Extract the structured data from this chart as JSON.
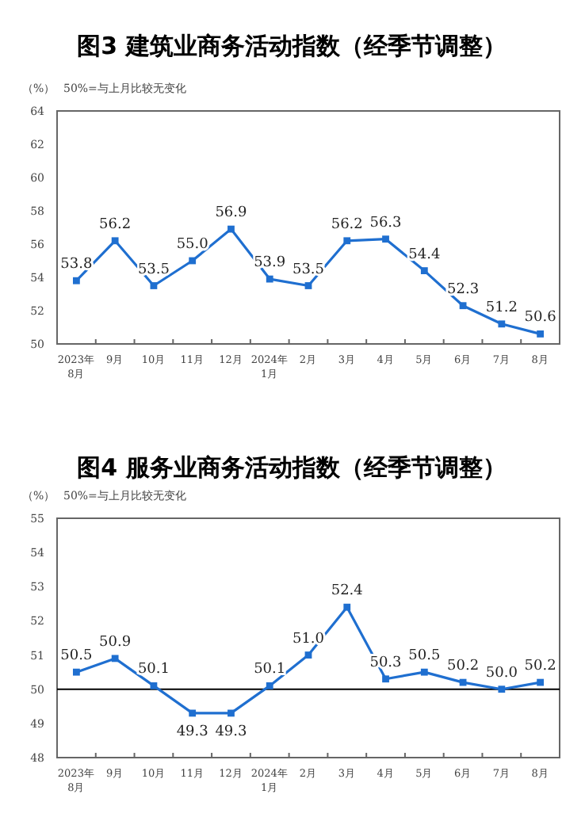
{
  "chart_data": [
    {
      "type": "line",
      "title": "图3  建筑业商务活动指数（经季节调整）",
      "ylabel": "（%）",
      "annotations": [
        "50%=与上月比较无变化"
      ],
      "categories": [
        "2023年\n8月",
        "9月",
        "10月",
        "11月",
        "12月",
        "2024年\n1月",
        "2月",
        "3月",
        "4月",
        "5月",
        "6月",
        "7月",
        "8月"
      ],
      "series": [
        {
          "color": "#1f6fd0",
          "values": [
            53.8,
            56.2,
            53.5,
            55.0,
            56.9,
            53.9,
            53.5,
            56.2,
            56.3,
            54.4,
            52.3,
            51.2,
            50.6
          ]
        }
      ],
      "value_labels": [
        "53.8",
        "56.2",
        "53.5",
        "55.0",
        "56.9",
        "53.9",
        "53.5",
        "56.2",
        "56.3",
        "54.4",
        "52.3",
        "51.2",
        "50.6"
      ],
      "ylim": [
        50,
        64
      ],
      "yticks": [
        50,
        52,
        54,
        56,
        58,
        60,
        62,
        64
      ],
      "marker": "square",
      "grid": false
    },
    {
      "type": "line",
      "title": "图4  服务业商务活动指数（经季节调整）",
      "ylabel": "（%）",
      "annotations": [
        "50%=与上月比较无变化"
      ],
      "categories": [
        "2023年\n8月",
        "9月",
        "10月",
        "11月",
        "12月",
        "2024年\n1月",
        "2月",
        "3月",
        "4月",
        "5月",
        "6月",
        "7月",
        "8月"
      ],
      "series": [
        {
          "color": "#1f6fd0",
          "values": [
            50.5,
            50.9,
            50.1,
            49.3,
            49.3,
            50.1,
            51.0,
            52.4,
            50.3,
            50.5,
            50.2,
            50.0,
            50.2
          ]
        }
      ],
      "value_labels": [
        "50.5",
        "50.9",
        "50.1",
        "49.3",
        "49.3",
        "50.1",
        "51.0",
        "52.4",
        "50.3",
        "50.5",
        "50.2",
        "50.0",
        "50.2"
      ],
      "ylim": [
        48,
        55
      ],
      "yticks": [
        48,
        49,
        50,
        51,
        52,
        53,
        54,
        55
      ],
      "ref_lines": [
        {
          "axis": "y",
          "value": 50,
          "color": "#000000"
        }
      ],
      "marker": "square",
      "grid": false
    }
  ]
}
